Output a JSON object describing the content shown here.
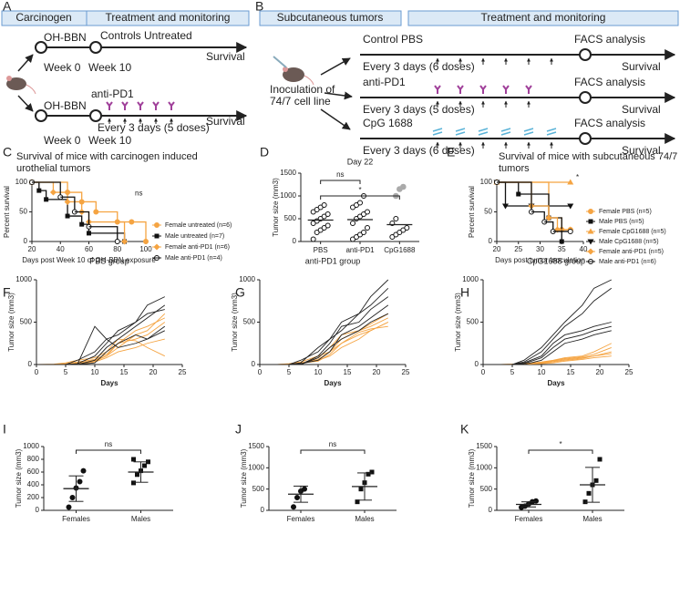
{
  "panel_a": {
    "label": "A",
    "headers": [
      "Carcinogen",
      "Treatment and monitoring"
    ],
    "control": {
      "start": "OH-BBN",
      "treatment": "Controls Untreated",
      "end": "Survival",
      "week_start": "Week 0",
      "week_end": "Week 10"
    },
    "treated": {
      "start": "OH-BBN",
      "treatment": "anti-PD1",
      "schedule": "Every 3 days (5 doses)",
      "end": "Survival",
      "week_start": "Week 0",
      "week_end": "Week 10"
    }
  },
  "panel_b": {
    "label": "B",
    "headers": [
      "Subcutaneous tumors",
      "Treatment and monitoring"
    ],
    "inoculation": [
      "Inoculation of",
      "74/7 cell line"
    ],
    "arms": [
      {
        "treatment": "Control PBS",
        "schedule": "Every 3 days (6 doses)",
        "analysis": "FACS analysis",
        "end": "Survival"
      },
      {
        "treatment": "anti-PD1",
        "schedule": "Every 3 days (5 doses)",
        "analysis": "FACS analysis",
        "end": "Survival"
      },
      {
        "treatment": "CpG 1688",
        "schedule": "Every 3 days (6 doses)",
        "analysis": "FACS analysis",
        "end": "Survival"
      }
    ]
  },
  "chart_data": [
    {
      "type": "survival",
      "label": "C",
      "title": [
        "Survival of mice with carcinogen induced",
        "urothelial tumors"
      ],
      "xlabel": "Days post Week 10 of OH-BBN exposure",
      "ylabel": "Percent survival",
      "xlim": [
        20,
        100
      ],
      "xticks": [
        20,
        40,
        60,
        80,
        100
      ],
      "ylim": [
        0,
        100
      ],
      "yticks": [
        0,
        50,
        100
      ],
      "annotations": [
        "ns"
      ],
      "series": [
        {
          "name": "Female untreated (n=6)",
          "color": "#f5a442",
          "marker": "circle",
          "x": [
            20,
            45,
            55,
            65,
            80,
            90,
            100
          ],
          "values": [
            100,
            83,
            67,
            50,
            33,
            33,
            0
          ]
        },
        {
          "name": "Male untreated (n=7)",
          "color": "#111111",
          "marker": "square",
          "x": [
            20,
            25,
            30,
            45,
            55,
            60,
            85
          ],
          "values": [
            100,
            86,
            71,
            43,
            29,
            14,
            0
          ]
        },
        {
          "name": "Female anti-PD1 (n=6)",
          "color": "#f5a442",
          "marker": "diamond",
          "x": [
            20,
            35,
            45,
            55,
            60,
            85
          ],
          "values": [
            100,
            83,
            67,
            50,
            33,
            0
          ]
        },
        {
          "name": "Male anti-PD1 (n=4)",
          "color": "#111111",
          "marker": "open-circle",
          "x": [
            20,
            40,
            50,
            60,
            80
          ],
          "values": [
            100,
            75,
            50,
            25,
            0
          ]
        }
      ]
    },
    {
      "type": "dot",
      "label": "D",
      "title": "Day 22",
      "ylabel": "Tumor size (mm3)",
      "categories": [
        "PBS",
        "anti-PD1",
        "CpG1688"
      ],
      "ylim": [
        0,
        1500
      ],
      "yticks": [
        0,
        500,
        1000,
        1500
      ],
      "annotations": [
        "ns",
        "*"
      ],
      "groups": [
        {
          "marker": "open-circle",
          "color": "#111111",
          "mean": 470,
          "values": [
            50,
            200,
            250,
            300,
            350,
            400,
            450,
            500,
            550,
            600,
            650,
            700,
            750,
            800
          ]
        },
        {
          "marker": "open-circle",
          "color": "#111111",
          "mean": 480,
          "values": [
            50,
            100,
            150,
            200,
            300,
            400,
            500,
            550,
            600,
            650,
            750,
            800,
            850,
            1000
          ]
        },
        {
          "marker": "open-circle",
          "color": "#111111",
          "mean": 370,
          "values": [
            100,
            150,
            200,
            250,
            300,
            400,
            500
          ],
          "extra_values": [
            1000,
            1150,
            1200
          ],
          "extra_color": "#aaaaaa"
        }
      ]
    },
    {
      "type": "survival",
      "label": "E",
      "title": [
        "Survival of mice with subcutaneous 74/7",
        "tumors"
      ],
      "xlabel": "Days post tumor inoculation",
      "ylabel": "Percent survival",
      "xlim": [
        20,
        40
      ],
      "xticks": [
        20,
        25,
        30,
        35,
        40
      ],
      "ylim": [
        0,
        100
      ],
      "yticks": [
        0,
        50,
        100
      ],
      "annotations": [
        "*"
      ],
      "series": [
        {
          "name": "Female PBS (n=5)",
          "color": "#f5a442",
          "marker": "circle",
          "x": [
            20,
            32,
            35,
            37
          ],
          "values": [
            100,
            40,
            20,
            20
          ]
        },
        {
          "name": "Male PBS (n=5)",
          "color": "#111111",
          "marker": "square",
          "x": [
            20,
            25,
            32,
            35
          ],
          "values": [
            100,
            80,
            40,
            0
          ]
        },
        {
          "name": "Female CpG1688 (n=5)",
          "color": "#f5a442",
          "marker": "triangle-up",
          "x": [
            20,
            37
          ],
          "values": [
            100,
            100
          ]
        },
        {
          "name": "Male CpG1688 (n=5)",
          "color": "#111111",
          "marker": "triangle-down",
          "x": [
            20,
            22,
            28,
            37
          ],
          "values": [
            100,
            60,
            60,
            60
          ]
        },
        {
          "name": "Female anti-PD1 (n=5)",
          "color": "#f5a442",
          "marker": "diamond",
          "x": [
            20,
            28,
            32,
            34,
            37
          ],
          "values": [
            100,
            60,
            40,
            20,
            20
          ]
        },
        {
          "name": "Male anti-PD1 (n=6)",
          "color": "#111111",
          "marker": "open-circle",
          "x": [
            20,
            28,
            31,
            33,
            37
          ],
          "values": [
            100,
            50,
            33,
            17,
            17
          ]
        }
      ]
    },
    {
      "type": "line",
      "label": "F",
      "title": "PBS group",
      "xlabel": "Days",
      "ylabel": "Tumor size (mm3)",
      "xlim": [
        0,
        25
      ],
      "xticks": [
        0,
        5,
        10,
        15,
        20,
        25
      ],
      "ylim": [
        0,
        1000
      ],
      "yticks": [
        0,
        500,
        1000
      ],
      "x": [
        0,
        3,
        5,
        7,
        10,
        12,
        14,
        17,
        19,
        22
      ],
      "series": [
        {
          "color": "#f5a442",
          "values": [
            0,
            0,
            10,
            30,
            60,
            120,
            250,
            300,
            350,
            500
          ]
        },
        {
          "color": "#f5a442",
          "values": [
            0,
            0,
            0,
            20,
            40,
            100,
            200,
            350,
            400,
            600
          ]
        },
        {
          "color": "#f5a442",
          "values": [
            0,
            5,
            20,
            50,
            80,
            150,
            300,
            280,
            200,
            100
          ]
        },
        {
          "color": "#f5a442",
          "values": [
            0,
            0,
            0,
            10,
            30,
            80,
            150,
            200,
            250,
            300
          ]
        },
        {
          "color": "#f5a442",
          "values": [
            0,
            0,
            5,
            15,
            50,
            100,
            250,
            400,
            450,
            550
          ]
        },
        {
          "color": "#222222",
          "values": [
            0,
            0,
            0,
            50,
            150,
            300,
            350,
            500,
            700,
            800
          ]
        },
        {
          "color": "#222222",
          "values": [
            0,
            0,
            0,
            0,
            50,
            200,
            300,
            450,
            550,
            700
          ]
        },
        {
          "color": "#222222",
          "values": [
            0,
            0,
            0,
            0,
            450,
            300,
            200,
            250,
            300,
            450
          ]
        },
        {
          "color": "#222222",
          "values": [
            0,
            0,
            0,
            0,
            20,
            150,
            250,
            350,
            300,
            400
          ]
        },
        {
          "color": "#222222",
          "values": [
            0,
            0,
            0,
            10,
            100,
            250,
            400,
            500,
            600,
            650
          ]
        }
      ]
    },
    {
      "type": "line",
      "label": "G",
      "title": "anti-PD1 group",
      "xlabel": "Days",
      "ylabel": "Tumor size (mm3)",
      "xlim": [
        0,
        25
      ],
      "xticks": [
        0,
        5,
        10,
        15,
        20,
        25
      ],
      "ylim": [
        0,
        1000
      ],
      "yticks": [
        0,
        500,
        1000
      ],
      "x": [
        0,
        3,
        5,
        7,
        10,
        12,
        14,
        17,
        19,
        22
      ],
      "series": [
        {
          "color": "#f5a442",
          "values": [
            0,
            0,
            5,
            20,
            60,
            150,
            250,
            350,
            400,
            500
          ]
        },
        {
          "color": "#f5a442",
          "values": [
            0,
            0,
            10,
            30,
            100,
            150,
            300,
            400,
            450,
            550
          ]
        },
        {
          "color": "#f5a442",
          "values": [
            0,
            0,
            0,
            20,
            50,
            100,
            200,
            300,
            400,
            500
          ]
        },
        {
          "color": "#f5a442",
          "values": [
            0,
            0,
            0,
            10,
            80,
            200,
            350,
            400,
            480,
            600
          ]
        },
        {
          "color": "#f5a442",
          "values": [
            0,
            0,
            5,
            15,
            40,
            120,
            250,
            380,
            420,
            450
          ]
        },
        {
          "color": "#222222",
          "values": [
            0,
            0,
            0,
            50,
            150,
            300,
            500,
            600,
            700,
            900
          ]
        },
        {
          "color": "#222222",
          "values": [
            0,
            0,
            0,
            20,
            200,
            300,
            400,
            600,
            800,
            1000
          ]
        },
        {
          "color": "#222222",
          "values": [
            0,
            0,
            0,
            0,
            100,
            250,
            450,
            500,
            650,
            800
          ]
        },
        {
          "color": "#222222",
          "values": [
            0,
            0,
            0,
            10,
            50,
            150,
            350,
            450,
            550,
            700
          ]
        },
        {
          "color": "#222222",
          "values": [
            0,
            0,
            0,
            0,
            80,
            200,
            300,
            400,
            500,
            600
          ]
        }
      ]
    },
    {
      "type": "line",
      "label": "H",
      "title": "CpG1688 group",
      "xlabel": "Days",
      "ylabel": "Tumor size (mm3)",
      "xlim": [
        0,
        25
      ],
      "xticks": [
        0,
        5,
        10,
        15,
        20,
        25
      ],
      "ylim": [
        0,
        1000
      ],
      "yticks": [
        0,
        500,
        1000
      ],
      "x": [
        0,
        3,
        5,
        7,
        10,
        12,
        14,
        17,
        19,
        22
      ],
      "series": [
        {
          "color": "#f5a442",
          "values": [
            0,
            0,
            5,
            10,
            30,
            50,
            80,
            100,
            150,
            250
          ]
        },
        {
          "color": "#f5a442",
          "values": [
            0,
            0,
            0,
            10,
            20,
            40,
            60,
            80,
            100,
            150
          ]
        },
        {
          "color": "#f5a442",
          "values": [
            0,
            0,
            5,
            15,
            25,
            45,
            70,
            90,
            120,
            200
          ]
        },
        {
          "color": "#f5a442",
          "values": [
            0,
            0,
            0,
            5,
            15,
            30,
            50,
            70,
            100,
            130
          ]
        },
        {
          "color": "#f5a442",
          "values": [
            0,
            0,
            0,
            5,
            10,
            20,
            40,
            60,
            80,
            100
          ]
        },
        {
          "color": "#222222",
          "values": [
            0,
            0,
            0,
            50,
            200,
            350,
            500,
            700,
            900,
            1000
          ]
        },
        {
          "color": "#222222",
          "values": [
            0,
            0,
            0,
            30,
            150,
            300,
            450,
            600,
            750,
            900
          ]
        },
        {
          "color": "#222222",
          "values": [
            0,
            0,
            0,
            20,
            100,
            250,
            350,
            400,
            450,
            500
          ]
        },
        {
          "color": "#222222",
          "values": [
            0,
            0,
            0,
            10,
            80,
            200,
            300,
            350,
            400,
            450
          ]
        },
        {
          "color": "#222222",
          "values": [
            0,
            0,
            0,
            0,
            50,
            150,
            250,
            300,
            350,
            400
          ]
        }
      ]
    },
    {
      "type": "dot",
      "label": "I",
      "ylabel": "Tumor size (mm3)",
      "categories": [
        "Females",
        "Males"
      ],
      "ylim": [
        0,
        1000
      ],
      "yticks": [
        0,
        200,
        400,
        600,
        800,
        1000
      ],
      "annotations": [
        "ns"
      ],
      "groups": [
        {
          "marker": "circle",
          "color": "#111111",
          "mean": 340,
          "sd": 200,
          "values": [
            50,
            200,
            350,
            450,
            620
          ]
        },
        {
          "marker": "square",
          "color": "#111111",
          "mean": 600,
          "sd": 160,
          "values": [
            430,
            560,
            620,
            700,
            760,
            800
          ]
        }
      ]
    },
    {
      "type": "dot",
      "label": "J",
      "ylabel": "Tumor size (mm3)",
      "categories": [
        "Females",
        "Males"
      ],
      "ylim": [
        0,
        1500
      ],
      "yticks": [
        0,
        500,
        1000,
        1500
      ],
      "annotations": [
        "ns"
      ],
      "groups": [
        {
          "marker": "circle",
          "color": "#111111",
          "mean": 380,
          "sd": 190,
          "values": [
            80,
            300,
            450,
            500
          ]
        },
        {
          "marker": "square",
          "color": "#111111",
          "mean": 560,
          "sd": 320,
          "values": [
            200,
            500,
            650,
            850,
            900
          ]
        }
      ]
    },
    {
      "type": "dot",
      "label": "K",
      "ylabel": "Tumor size (mm3)",
      "categories": [
        "Females",
        "Males"
      ],
      "ylim": [
        0,
        1500
      ],
      "yticks": [
        0,
        500,
        1000,
        1500
      ],
      "annotations": [
        "*"
      ],
      "groups": [
        {
          "marker": "circle",
          "color": "#111111",
          "mean": 140,
          "sd": 60,
          "values": [
            70,
            100,
            150,
            200,
            220
          ]
        },
        {
          "marker": "square",
          "color": "#111111",
          "mean": 600,
          "sd": 410,
          "values": [
            200,
            400,
            600,
            700,
            1200
          ]
        }
      ]
    }
  ]
}
